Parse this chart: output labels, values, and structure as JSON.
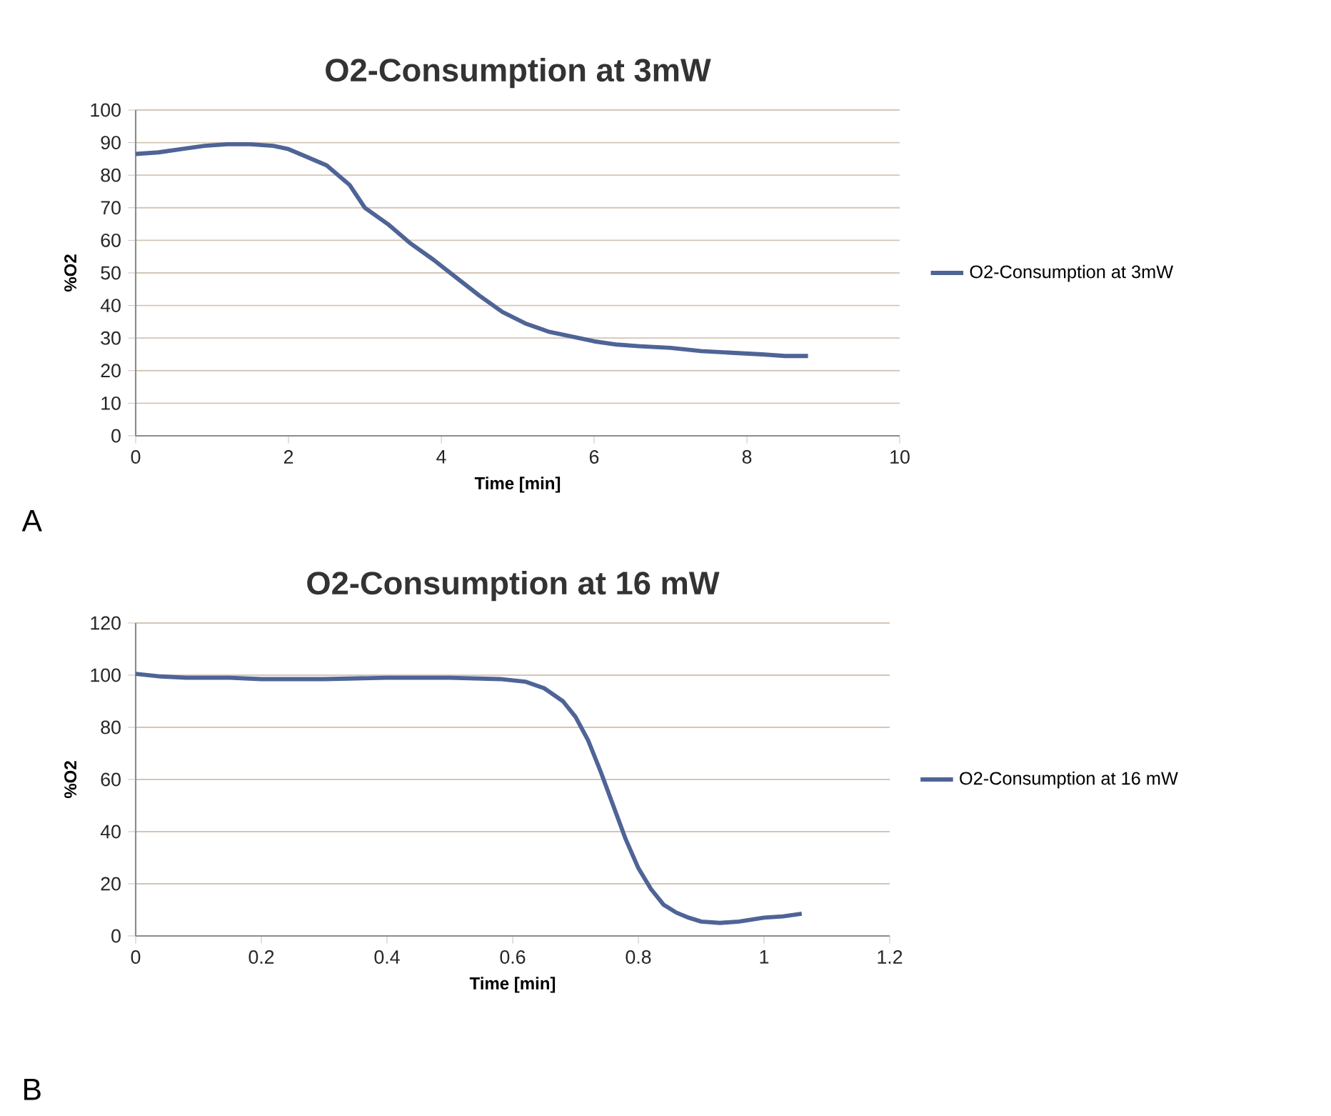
{
  "chart_data": [
    {
      "type": "line",
      "title": "O2-Consumption at 3mW",
      "xlabel": "Time [min]",
      "ylabel": "%O2",
      "xlim": [
        0,
        10
      ],
      "xticks": [
        0,
        2,
        4,
        6,
        8,
        10
      ],
      "ylim": [
        0,
        100
      ],
      "yticks": [
        0,
        10,
        20,
        30,
        40,
        50,
        60,
        70,
        80,
        90,
        100
      ],
      "grid": "y",
      "legend": "right",
      "annotations": [
        "A"
      ],
      "series": [
        {
          "name": "O2-Consumption at 3mW",
          "color": "#4f6496",
          "x": [
            0,
            0.3,
            0.6,
            0.9,
            1.2,
            1.5,
            1.8,
            2.0,
            2.2,
            2.5,
            2.8,
            3.0,
            3.3,
            3.6,
            3.9,
            4.2,
            4.5,
            4.8,
            5.1,
            5.4,
            5.7,
            6.0,
            6.3,
            6.6,
            7.0,
            7.4,
            7.8,
            8.2,
            8.5,
            8.8
          ],
          "values": [
            86.5,
            87,
            88,
            89,
            89.5,
            89.5,
            89,
            88,
            86,
            83,
            77,
            70,
            65,
            59,
            54,
            48.5,
            43,
            38,
            34.5,
            32,
            30.5,
            29,
            28,
            27.5,
            27,
            26,
            25.5,
            25,
            24.5,
            24.5
          ]
        }
      ]
    },
    {
      "type": "line",
      "title": "O2-Consumption at 16 mW",
      "xlabel": "Time [min]",
      "ylabel": "%O2",
      "xlim": [
        0,
        1.2
      ],
      "xticks": [
        0,
        0.2,
        0.4,
        0.6,
        0.8,
        1,
        1.2
      ],
      "ylim": [
        0,
        120
      ],
      "yticks": [
        0,
        20,
        40,
        60,
        80,
        100,
        120
      ],
      "grid": "y",
      "legend": "right",
      "annotations": [
        "B"
      ],
      "series": [
        {
          "name": "O2-Consumption at 16 mW",
          "color": "#4f6496",
          "x": [
            0,
            0.04,
            0.08,
            0.15,
            0.2,
            0.3,
            0.4,
            0.5,
            0.58,
            0.62,
            0.65,
            0.68,
            0.7,
            0.72,
            0.74,
            0.76,
            0.78,
            0.8,
            0.82,
            0.84,
            0.86,
            0.88,
            0.9,
            0.93,
            0.96,
            1.0,
            1.03,
            1.06
          ],
          "values": [
            100.5,
            99.5,
            99,
            99,
            98.5,
            98.5,
            99,
            99,
            98.5,
            97.5,
            95,
            90,
            84,
            75,
            63,
            50,
            37,
            26,
            18,
            12,
            9,
            7,
            5.5,
            5,
            5.5,
            7,
            7.5,
            8.5
          ]
        }
      ]
    }
  ]
}
